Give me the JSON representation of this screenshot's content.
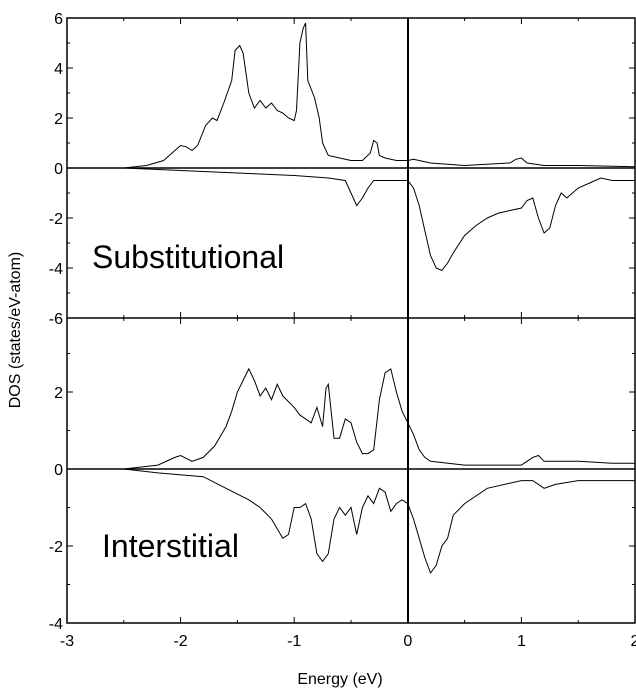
{
  "chart_data": {
    "type": "line",
    "xlabel": "Energy (eV)",
    "ylabel": "DOS (states/eV-atom)",
    "x_ticks": [
      "-3",
      "-2",
      "-1",
      "0",
      "1",
      "2"
    ],
    "xlim": [
      -3,
      2
    ],
    "grid": false,
    "fermi_line_x": 0,
    "panels": [
      {
        "name": "Substitutional",
        "label": "Substitutional",
        "ylim": [
          -6,
          6
        ],
        "y_ticks": [
          "6",
          "4",
          "2",
          "0",
          "-2",
          "-4",
          "-6"
        ],
        "y_tick_values": [
          6,
          4,
          2,
          0,
          -2,
          -4,
          -6
        ],
        "series": [
          {
            "values_up": [
              [
                -3,
                0
              ],
              [
                -2.5,
                0
              ],
              [
                -2.3,
                0.1
              ],
              [
                -2.15,
                0.3
              ],
              [
                -2.05,
                0.7
              ],
              [
                -2.0,
                0.9
              ],
              [
                -1.95,
                0.85
              ],
              [
                -1.9,
                0.7
              ],
              [
                -1.85,
                0.9
              ],
              [
                -1.78,
                1.7
              ],
              [
                -1.72,
                2.0
              ],
              [
                -1.68,
                1.9
              ],
              [
                -1.62,
                2.6
              ],
              [
                -1.55,
                3.5
              ],
              [
                -1.52,
                4.7
              ],
              [
                -1.48,
                4.9
              ],
              [
                -1.45,
                4.6
              ],
              [
                -1.4,
                3.0
              ],
              [
                -1.35,
                2.4
              ],
              [
                -1.3,
                2.7
              ],
              [
                -1.25,
                2.4
              ],
              [
                -1.2,
                2.6
              ],
              [
                -1.15,
                2.3
              ],
              [
                -1.1,
                2.2
              ],
              [
                -1.05,
                2.0
              ],
              [
                -1.0,
                1.9
              ],
              [
                -0.98,
                2.3
              ],
              [
                -0.95,
                5.0
              ],
              [
                -0.92,
                5.6
              ],
              [
                -0.9,
                5.8
              ],
              [
                -0.88,
                3.5
              ],
              [
                -0.82,
                2.8
              ],
              [
                -0.78,
                2.0
              ],
              [
                -0.75,
                1.0
              ],
              [
                -0.7,
                0.5
              ],
              [
                -0.6,
                0.4
              ],
              [
                -0.5,
                0.3
              ],
              [
                -0.4,
                0.3
              ],
              [
                -0.33,
                0.6
              ],
              [
                -0.3,
                1.1
              ],
              [
                -0.27,
                1.0
              ],
              [
                -0.25,
                0.5
              ],
              [
                -0.2,
                0.4
              ],
              [
                -0.1,
                0.3
              ],
              [
                0,
                0.3
              ],
              [
                0.05,
                0.35
              ],
              [
                0.1,
                0.3
              ],
              [
                0.2,
                0.2
              ],
              [
                0.5,
                0.1
              ],
              [
                0.9,
                0.2
              ],
              [
                0.95,
                0.35
              ],
              [
                1.0,
                0.4
              ],
              [
                1.05,
                0.2
              ],
              [
                1.2,
                0.1
              ],
              [
                1.5,
                0.1
              ],
              [
                2,
                0.05
              ]
            ],
            "values_down": [
              [
                -3,
                0
              ],
              [
                -2.5,
                0
              ],
              [
                -2.0,
                -0.1
              ],
              [
                -1.5,
                -0.2
              ],
              [
                -1.0,
                -0.3
              ],
              [
                -0.7,
                -0.4
              ],
              [
                -0.55,
                -0.5
              ],
              [
                -0.5,
                -1.0
              ],
              [
                -0.45,
                -1.5
              ],
              [
                -0.4,
                -1.2
              ],
              [
                -0.35,
                -0.8
              ],
              [
                -0.3,
                -0.5
              ],
              [
                -0.2,
                -0.5
              ],
              [
                -0.1,
                -0.5
              ],
              [
                0,
                -0.5
              ],
              [
                0.05,
                -0.8
              ],
              [
                0.1,
                -1.5
              ],
              [
                0.15,
                -2.5
              ],
              [
                0.2,
                -3.5
              ],
              [
                0.25,
                -4.0
              ],
              [
                0.3,
                -4.1
              ],
              [
                0.35,
                -3.8
              ],
              [
                0.4,
                -3.4
              ],
              [
                0.5,
                -2.7
              ],
              [
                0.6,
                -2.3
              ],
              [
                0.7,
                -2.0
              ],
              [
                0.8,
                -1.8
              ],
              [
                0.9,
                -1.7
              ],
              [
                1.0,
                -1.6
              ],
              [
                1.05,
                -1.3
              ],
              [
                1.1,
                -1.2
              ],
              [
                1.15,
                -2.0
              ],
              [
                1.2,
                -2.6
              ],
              [
                1.25,
                -2.4
              ],
              [
                1.3,
                -1.5
              ],
              [
                1.35,
                -1.0
              ],
              [
                1.4,
                -1.2
              ],
              [
                1.5,
                -0.8
              ],
              [
                1.6,
                -0.6
              ],
              [
                1.7,
                -0.4
              ],
              [
                1.8,
                -0.5
              ],
              [
                2,
                -0.5
              ]
            ]
          }
        ]
      },
      {
        "name": "Interstitial",
        "label": "Interstitial",
        "ylim": [
          -4,
          4
        ],
        "y_ticks": [
          "2",
          "0",
          "-2",
          "-4"
        ],
        "y_tick_values": [
          2,
          0,
          -2,
          -4
        ],
        "series": [
          {
            "values_up": [
              [
                -3,
                0
              ],
              [
                -2.5,
                0
              ],
              [
                -2.2,
                0.1
              ],
              [
                -2.05,
                0.3
              ],
              [
                -2.0,
                0.35
              ],
              [
                -1.9,
                0.2
              ],
              [
                -1.8,
                0.3
              ],
              [
                -1.7,
                0.6
              ],
              [
                -1.6,
                1.1
              ],
              [
                -1.55,
                1.5
              ],
              [
                -1.5,
                2.0
              ],
              [
                -1.45,
                2.3
              ],
              [
                -1.4,
                2.6
              ],
              [
                -1.35,
                2.3
              ],
              [
                -1.3,
                1.9
              ],
              [
                -1.25,
                2.1
              ],
              [
                -1.2,
                1.8
              ],
              [
                -1.15,
                2.2
              ],
              [
                -1.1,
                1.9
              ],
              [
                -1.0,
                1.6
              ],
              [
                -0.95,
                1.4
              ],
              [
                -0.9,
                1.3
              ],
              [
                -0.85,
                1.2
              ],
              [
                -0.8,
                1.6
              ],
              [
                -0.75,
                1.1
              ],
              [
                -0.72,
                2.1
              ],
              [
                -0.7,
                2.2
              ],
              [
                -0.65,
                0.8
              ],
              [
                -0.6,
                0.8
              ],
              [
                -0.55,
                1.3
              ],
              [
                -0.5,
                1.2
              ],
              [
                -0.45,
                0.7
              ],
              [
                -0.4,
                0.4
              ],
              [
                -0.35,
                0.4
              ],
              [
                -0.3,
                0.5
              ],
              [
                -0.25,
                1.8
              ],
              [
                -0.2,
                2.5
              ],
              [
                -0.15,
                2.6
              ],
              [
                -0.1,
                2.0
              ],
              [
                -0.05,
                1.5
              ],
              [
                0,
                1.2
              ],
              [
                0.05,
                0.9
              ],
              [
                0.1,
                0.5
              ],
              [
                0.15,
                0.3
              ],
              [
                0.2,
                0.2
              ],
              [
                0.5,
                0.1
              ],
              [
                1.0,
                0.1
              ],
              [
                1.1,
                0.3
              ],
              [
                1.15,
                0.35
              ],
              [
                1.2,
                0.2
              ],
              [
                1.5,
                0.2
              ],
              [
                1.8,
                0.15
              ],
              [
                2,
                0.15
              ]
            ],
            "values_down": [
              [
                -3,
                0
              ],
              [
                -2.5,
                0
              ],
              [
                -2.2,
                -0.1
              ],
              [
                -1.8,
                -0.2
              ],
              [
                -1.6,
                -0.5
              ],
              [
                -1.4,
                -0.8
              ],
              [
                -1.3,
                -1.0
              ],
              [
                -1.2,
                -1.3
              ],
              [
                -1.1,
                -1.8
              ],
              [
                -1.05,
                -1.7
              ],
              [
                -1.0,
                -1.0
              ],
              [
                -0.95,
                -1.0
              ],
              [
                -0.9,
                -0.9
              ],
              [
                -0.85,
                -1.3
              ],
              [
                -0.8,
                -2.2
              ],
              [
                -0.75,
                -2.4
              ],
              [
                -0.7,
                -2.2
              ],
              [
                -0.65,
                -1.3
              ],
              [
                -0.6,
                -1.0
              ],
              [
                -0.55,
                -1.2
              ],
              [
                -0.5,
                -1.0
              ],
              [
                -0.45,
                -1.7
              ],
              [
                -0.4,
                -1.0
              ],
              [
                -0.35,
                -0.7
              ],
              [
                -0.3,
                -0.9
              ],
              [
                -0.25,
                -0.5
              ],
              [
                -0.2,
                -0.6
              ],
              [
                -0.15,
                -1.1
              ],
              [
                -0.1,
                -0.9
              ],
              [
                -0.05,
                -0.8
              ],
              [
                0,
                -0.9
              ],
              [
                0.05,
                -1.3
              ],
              [
                0.1,
                -1.8
              ],
              [
                0.15,
                -2.3
              ],
              [
                0.2,
                -2.7
              ],
              [
                0.25,
                -2.5
              ],
              [
                0.3,
                -2.0
              ],
              [
                0.35,
                -1.8
              ],
              [
                0.4,
                -1.2
              ],
              [
                0.5,
                -0.9
              ],
              [
                0.7,
                -0.5
              ],
              [
                1.0,
                -0.3
              ],
              [
                1.1,
                -0.3
              ],
              [
                1.2,
                -0.5
              ],
              [
                1.3,
                -0.4
              ],
              [
                1.5,
                -0.3
              ],
              [
                2,
                -0.3
              ]
            ]
          }
        ]
      }
    ]
  }
}
